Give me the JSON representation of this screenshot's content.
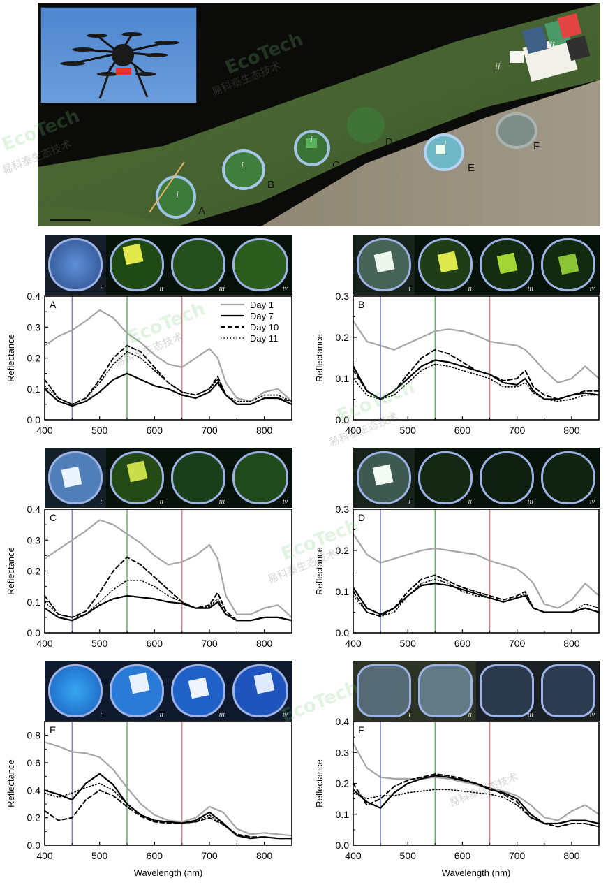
{
  "figure": {
    "pond_labels": [
      "A",
      "B",
      "C",
      "D",
      "E",
      "F"
    ],
    "roman_labels": [
      "i",
      "ii",
      "iii",
      "iv"
    ],
    "watermark": "EcoTech",
    "watermark_cn": "易科泰生态技术",
    "colors": {
      "day1": "#a6a6a6",
      "day7": "#000000",
      "day10": "#000000",
      "day11": "#000000",
      "blue_band": "#7d86c4",
      "green_band": "#5fb55f",
      "red_band": "#d98080"
    }
  },
  "chart_data": [
    {
      "type": "line",
      "panel": "A",
      "ylabel": "Reflectance",
      "xlabel": "",
      "xlim": [
        400,
        850
      ],
      "ylim": [
        0.0,
        0.4
      ],
      "yticks": [
        "0.0",
        "0.1",
        "0.2",
        "0.3",
        "0.4"
      ],
      "xticks": [
        "400",
        "500",
        "600",
        "700",
        "800"
      ],
      "vlines": [
        450,
        550,
        650
      ],
      "legend": [
        "Day 1",
        "Day 7",
        "Day 10",
        "Day 11"
      ],
      "x": [
        400,
        425,
        450,
        475,
        500,
        525,
        550,
        575,
        600,
        625,
        650,
        675,
        700,
        715,
        730,
        750,
        775,
        800,
        825,
        850
      ],
      "series": [
        {
          "name": "Day 1",
          "values": [
            0.24,
            0.27,
            0.29,
            0.32,
            0.355,
            0.33,
            0.28,
            0.25,
            0.21,
            0.18,
            0.17,
            0.2,
            0.23,
            0.2,
            0.12,
            0.07,
            0.06,
            0.09,
            0.1,
            0.06
          ]
        },
        {
          "name": "Day 7",
          "values": [
            0.1,
            0.06,
            0.045,
            0.06,
            0.09,
            0.13,
            0.15,
            0.13,
            0.11,
            0.1,
            0.08,
            0.07,
            0.09,
            0.12,
            0.08,
            0.05,
            0.05,
            0.07,
            0.07,
            0.05
          ]
        },
        {
          "name": "Day 10",
          "values": [
            0.13,
            0.07,
            0.05,
            0.07,
            0.13,
            0.2,
            0.24,
            0.22,
            0.17,
            0.12,
            0.09,
            0.08,
            0.1,
            0.14,
            0.08,
            0.05,
            0.05,
            0.07,
            0.07,
            0.06
          ]
        },
        {
          "name": "Day 11",
          "values": [
            0.11,
            0.07,
            0.05,
            0.07,
            0.12,
            0.18,
            0.22,
            0.2,
            0.16,
            0.12,
            0.09,
            0.08,
            0.1,
            0.13,
            0.08,
            0.06,
            0.06,
            0.08,
            0.08,
            0.06
          ]
        }
      ]
    },
    {
      "type": "line",
      "panel": "B",
      "ylabel": "Reflectance",
      "xlabel": "",
      "xlim": [
        400,
        850
      ],
      "ylim": [
        0.0,
        0.3
      ],
      "yticks": [
        "0.0",
        "0.1",
        "0.2",
        "0.3"
      ],
      "xticks": [
        "400",
        "500",
        "600",
        "700",
        "800"
      ],
      "vlines": [
        450,
        550,
        650
      ],
      "x": [
        400,
        425,
        450,
        475,
        500,
        525,
        550,
        575,
        600,
        625,
        650,
        675,
        700,
        715,
        730,
        750,
        775,
        800,
        825,
        850
      ],
      "series": [
        {
          "name": "Day 1",
          "values": [
            0.24,
            0.19,
            0.18,
            0.17,
            0.185,
            0.2,
            0.215,
            0.22,
            0.215,
            0.205,
            0.19,
            0.185,
            0.18,
            0.17,
            0.15,
            0.12,
            0.09,
            0.1,
            0.13,
            0.1
          ]
        },
        {
          "name": "Day 7",
          "values": [
            0.13,
            0.07,
            0.05,
            0.07,
            0.1,
            0.13,
            0.145,
            0.14,
            0.13,
            0.12,
            0.11,
            0.09,
            0.085,
            0.1,
            0.07,
            0.05,
            0.05,
            0.06,
            0.065,
            0.06
          ]
        },
        {
          "name": "Day 10",
          "values": [
            0.12,
            0.07,
            0.05,
            0.07,
            0.11,
            0.15,
            0.17,
            0.16,
            0.14,
            0.12,
            0.11,
            0.095,
            0.1,
            0.12,
            0.08,
            0.06,
            0.05,
            0.06,
            0.07,
            0.07
          ]
        },
        {
          "name": "Day 11",
          "values": [
            0.1,
            0.06,
            0.05,
            0.06,
            0.09,
            0.12,
            0.135,
            0.13,
            0.12,
            0.11,
            0.1,
            0.08,
            0.08,
            0.09,
            0.065,
            0.05,
            0.045,
            0.05,
            0.06,
            0.06
          ]
        }
      ]
    },
    {
      "type": "line",
      "panel": "C",
      "ylabel": "Reflectance",
      "xlabel": "",
      "xlim": [
        400,
        850
      ],
      "ylim": [
        0.0,
        0.4
      ],
      "yticks": [
        "0.0",
        "0.1",
        "0.2",
        "0.3",
        "0.4"
      ],
      "xticks": [
        "400",
        "500",
        "600",
        "700",
        "800"
      ],
      "vlines": [
        450,
        550,
        650
      ],
      "x": [
        400,
        425,
        450,
        475,
        500,
        525,
        550,
        575,
        600,
        625,
        650,
        675,
        700,
        715,
        730,
        750,
        775,
        800,
        825,
        850
      ],
      "series": [
        {
          "name": "Day 1",
          "values": [
            0.24,
            0.27,
            0.3,
            0.33,
            0.365,
            0.35,
            0.32,
            0.29,
            0.25,
            0.22,
            0.23,
            0.25,
            0.285,
            0.24,
            0.12,
            0.06,
            0.06,
            0.08,
            0.09,
            0.05
          ]
        },
        {
          "name": "Day 7",
          "values": [
            0.08,
            0.05,
            0.04,
            0.06,
            0.09,
            0.11,
            0.12,
            0.115,
            0.11,
            0.1,
            0.095,
            0.08,
            0.08,
            0.1,
            0.06,
            0.04,
            0.04,
            0.05,
            0.05,
            0.04
          ]
        },
        {
          "name": "Day 10",
          "values": [
            0.12,
            0.06,
            0.05,
            0.07,
            0.13,
            0.2,
            0.245,
            0.22,
            0.18,
            0.14,
            0.1,
            0.08,
            0.09,
            0.13,
            0.07,
            0.04,
            0.04,
            0.05,
            0.05,
            0.04
          ]
        },
        {
          "name": "Day 11",
          "values": [
            0.1,
            0.06,
            0.05,
            0.06,
            0.1,
            0.14,
            0.17,
            0.17,
            0.15,
            0.12,
            0.1,
            0.08,
            0.085,
            0.11,
            0.06,
            0.04,
            0.04,
            0.05,
            0.05,
            0.04
          ]
        }
      ]
    },
    {
      "type": "line",
      "panel": "D",
      "ylabel": "Reflectance",
      "xlabel": "",
      "xlim": [
        400,
        850
      ],
      "ylim": [
        0.0,
        0.3
      ],
      "yticks": [
        "0.0",
        "0.1",
        "0.2",
        "0.3"
      ],
      "xticks": [
        "400",
        "500",
        "600",
        "700",
        "800"
      ],
      "vlines": [
        450,
        550,
        650
      ],
      "x": [
        400,
        425,
        450,
        475,
        500,
        525,
        550,
        575,
        600,
        625,
        650,
        675,
        700,
        715,
        730,
        750,
        775,
        800,
        825,
        850
      ],
      "series": [
        {
          "name": "Day 1",
          "values": [
            0.24,
            0.19,
            0.17,
            0.18,
            0.19,
            0.2,
            0.205,
            0.2,
            0.195,
            0.19,
            0.175,
            0.165,
            0.155,
            0.14,
            0.12,
            0.07,
            0.06,
            0.08,
            0.12,
            0.09
          ]
        },
        {
          "name": "Day 7",
          "values": [
            0.11,
            0.06,
            0.045,
            0.06,
            0.09,
            0.115,
            0.12,
            0.115,
            0.105,
            0.095,
            0.085,
            0.075,
            0.085,
            0.09,
            0.06,
            0.05,
            0.05,
            0.05,
            0.06,
            0.05
          ]
        },
        {
          "name": "Day 10",
          "values": [
            0.1,
            0.05,
            0.04,
            0.06,
            0.1,
            0.13,
            0.14,
            0.125,
            0.11,
            0.1,
            0.09,
            0.08,
            0.09,
            0.1,
            0.06,
            0.05,
            0.05,
            0.05,
            0.06,
            0.05
          ]
        },
        {
          "name": "Day 11",
          "values": [
            0.09,
            0.05,
            0.04,
            0.05,
            0.09,
            0.12,
            0.13,
            0.12,
            0.1,
            0.09,
            0.085,
            0.075,
            0.085,
            0.095,
            0.06,
            0.05,
            0.05,
            0.05,
            0.07,
            0.06
          ]
        }
      ]
    },
    {
      "type": "line",
      "panel": "E",
      "ylabel": "Reflectance",
      "xlabel": "Wavelength (nm)",
      "xlim": [
        400,
        850
      ],
      "ylim": [
        0.0,
        0.9
      ],
      "yticks": [
        "0.0",
        "0.2",
        "0.4",
        "0.6",
        "0.8"
      ],
      "xticks": [
        "400",
        "500",
        "600",
        "700",
        "800"
      ],
      "vlines": [
        450,
        550,
        650
      ],
      "x": [
        400,
        425,
        450,
        475,
        500,
        525,
        550,
        575,
        600,
        625,
        650,
        675,
        700,
        725,
        750,
        775,
        800,
        825,
        850
      ],
      "series": [
        {
          "name": "Day 1",
          "values": [
            0.75,
            0.72,
            0.68,
            0.67,
            0.64,
            0.55,
            0.42,
            0.3,
            0.22,
            0.18,
            0.17,
            0.2,
            0.28,
            0.24,
            0.12,
            0.08,
            0.09,
            0.08,
            0.07
          ]
        },
        {
          "name": "Day 7",
          "values": [
            0.4,
            0.37,
            0.33,
            0.45,
            0.52,
            0.44,
            0.3,
            0.22,
            0.18,
            0.17,
            0.16,
            0.18,
            0.24,
            0.16,
            0.07,
            0.05,
            0.06,
            0.05,
            0.05
          ]
        },
        {
          "name": "Day 10",
          "values": [
            0.25,
            0.18,
            0.2,
            0.33,
            0.4,
            0.36,
            0.28,
            0.21,
            0.17,
            0.16,
            0.16,
            0.17,
            0.2,
            0.15,
            0.08,
            0.06,
            0.06,
            0.05,
            0.05
          ]
        },
        {
          "name": "Day 11",
          "values": [
            0.38,
            0.35,
            0.38,
            0.42,
            0.45,
            0.4,
            0.3,
            0.22,
            0.18,
            0.17,
            0.16,
            0.17,
            0.22,
            0.15,
            0.07,
            0.05,
            0.06,
            0.05,
            0.05
          ]
        }
      ]
    },
    {
      "type": "line",
      "panel": "F",
      "ylabel": "Reflectance",
      "xlabel": "Wavelength (nm)",
      "xlim": [
        400,
        850
      ],
      "ylim": [
        0.0,
        0.4
      ],
      "yticks": [
        "0.0",
        "0.1",
        "0.2",
        "0.3",
        "0.4"
      ],
      "xticks": [
        "400",
        "500",
        "600",
        "700",
        "800"
      ],
      "vlines": [
        450,
        550,
        650
      ],
      "x": [
        400,
        425,
        450,
        475,
        500,
        525,
        550,
        575,
        600,
        625,
        650,
        675,
        700,
        725,
        750,
        775,
        800,
        825,
        850
      ],
      "series": [
        {
          "name": "Day 1",
          "values": [
            0.33,
            0.25,
            0.22,
            0.215,
            0.215,
            0.215,
            0.22,
            0.215,
            0.205,
            0.195,
            0.185,
            0.175,
            0.16,
            0.13,
            0.09,
            0.08,
            0.11,
            0.13,
            0.1
          ]
        },
        {
          "name": "Day 7",
          "values": [
            0.18,
            0.14,
            0.12,
            0.17,
            0.2,
            0.215,
            0.225,
            0.22,
            0.21,
            0.2,
            0.18,
            0.17,
            0.15,
            0.1,
            0.07,
            0.07,
            0.08,
            0.08,
            0.07
          ]
        },
        {
          "name": "Day 10",
          "values": [
            0.2,
            0.13,
            0.15,
            0.19,
            0.21,
            0.22,
            0.23,
            0.225,
            0.215,
            0.2,
            0.185,
            0.165,
            0.14,
            0.09,
            0.07,
            0.06,
            0.07,
            0.07,
            0.06
          ]
        },
        {
          "name": "Day 11",
          "values": [
            0.17,
            0.15,
            0.16,
            0.16,
            0.17,
            0.175,
            0.18,
            0.18,
            0.175,
            0.17,
            0.165,
            0.155,
            0.13,
            0.09,
            0.07,
            0.06,
            0.07,
            0.07,
            0.06
          ]
        }
      ]
    }
  ]
}
